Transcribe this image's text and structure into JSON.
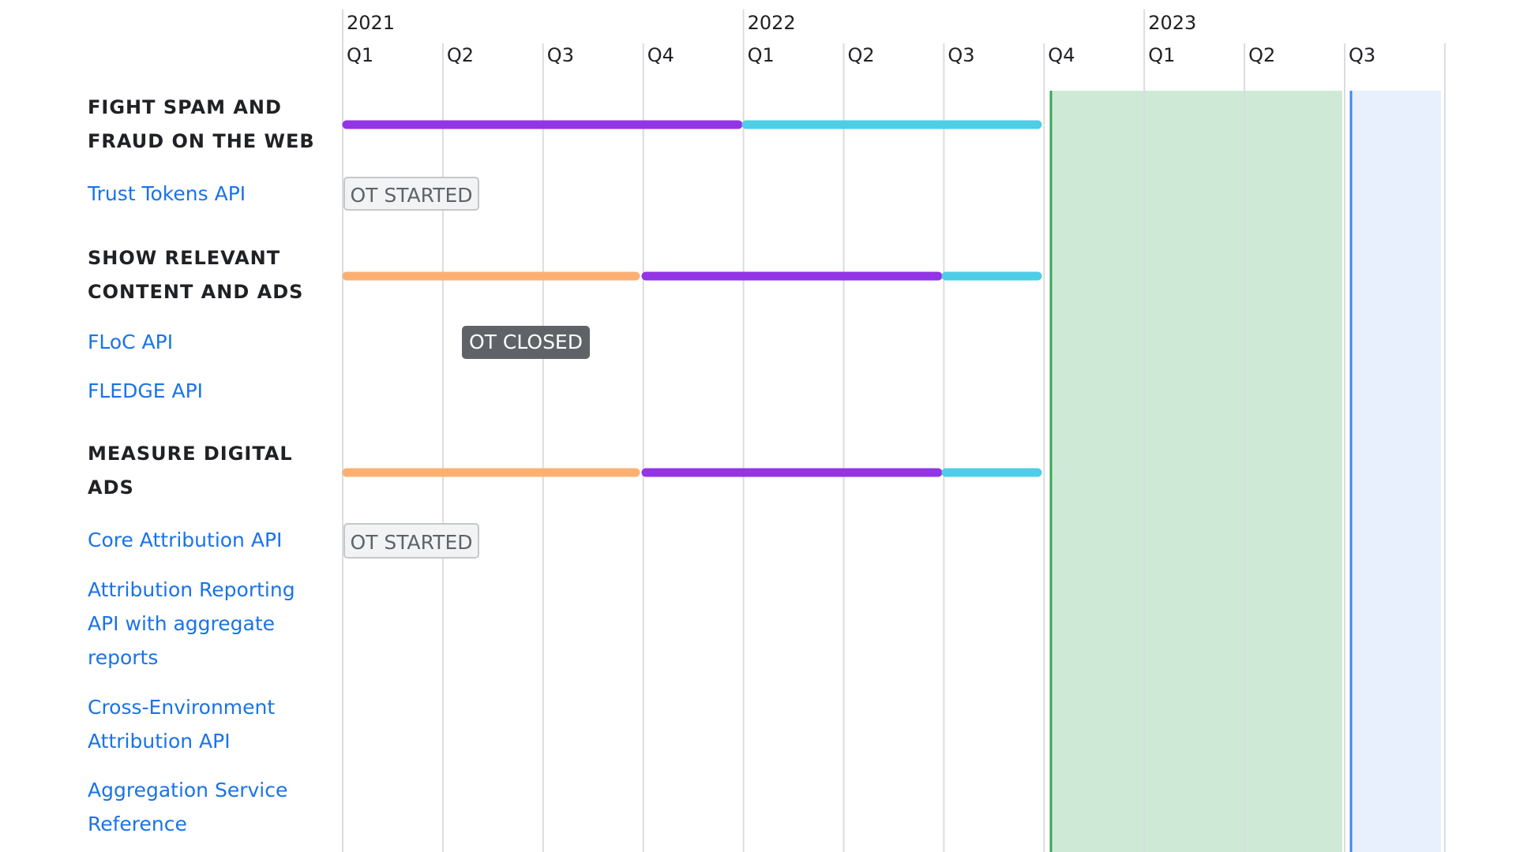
{
  "timeline": {
    "years": [
      "2021",
      "2022",
      "2023"
    ],
    "quarters": [
      "Q1",
      "Q2",
      "Q3",
      "Q4",
      "Q1",
      "Q2",
      "Q3",
      "Q4",
      "Q1",
      "Q2",
      "Q3"
    ],
    "sections": [
      {
        "title_lines": [
          "FIGHT SPAM AND",
          "FRAUD ON THE WEB"
        ],
        "items": [
          {
            "lines": [
              "Trust Tokens API"
            ],
            "badge": "OT STARTED"
          }
        ]
      },
      {
        "title_lines": [
          "SHOW RELEVANT",
          "CONTENT AND ADS"
        ],
        "items": [
          {
            "lines": [
              "FLoC API"
            ],
            "badge": "OT CLOSED"
          },
          {
            "lines": [
              "FLEDGE API"
            ]
          }
        ]
      },
      {
        "title_lines": [
          "MEASURE DIGITAL",
          "ADS"
        ],
        "items": [
          {
            "lines": [
              "Core Attribution API"
            ],
            "badge": "OT STARTED"
          },
          {
            "lines": [
              "Attribution Reporting",
              "API with aggregate",
              "reports"
            ]
          },
          {
            "lines": [
              "Cross-Environment",
              "Attribution API"
            ]
          },
          {
            "lines": [
              "Aggregation Service",
              "Reference"
            ]
          }
        ]
      }
    ]
  }
}
